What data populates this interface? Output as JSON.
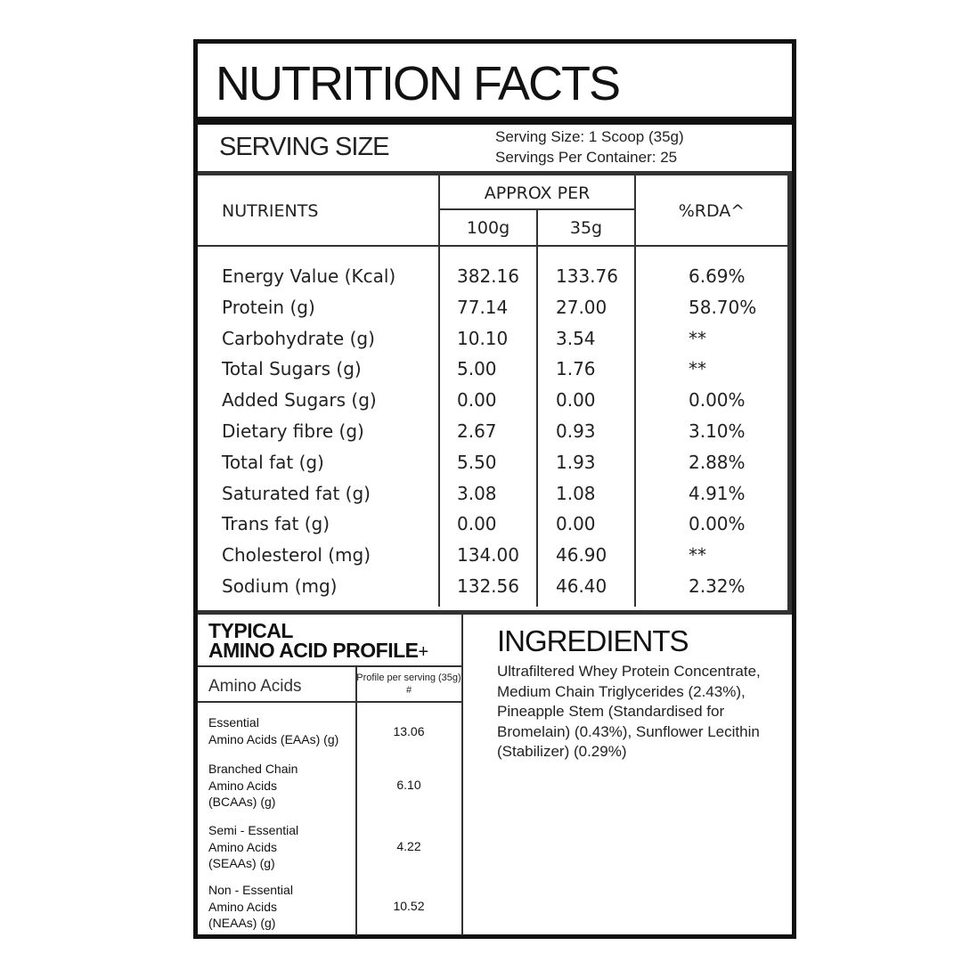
{
  "title": "NUTRITION FACTS",
  "serving": {
    "heading": "SERVING SIZE",
    "size": "Serving Size: 1 Scoop (35g)",
    "per_container": "Servings Per Container: 25"
  },
  "table": {
    "col_nutrients": "NUTRIENTS",
    "col_approx": "APPROX PER",
    "col_100g": "100g",
    "col_35g": "35g",
    "col_rda": "%RDA^",
    "rows": [
      {
        "name": "Energy Value (Kcal)",
        "per100": "382.16",
        "per35": "133.76",
        "rda": "6.69%"
      },
      {
        "name": "Protein (g)",
        "per100": "77.14",
        "per35": "27.00",
        "rda": "58.70%"
      },
      {
        "name": "Carbohydrate (g)",
        "per100": "10.10",
        "per35": "3.54",
        "rda": "**"
      },
      {
        "name": "Total Sugars (g)",
        "per100": "5.00",
        "per35": "1.76",
        "rda": "**"
      },
      {
        "name": "Added Sugars (g)",
        "per100": "0.00",
        "per35": "0.00",
        "rda": "0.00%"
      },
      {
        "name": "Dietary fibre (g)",
        "per100": "2.67",
        "per35": "0.93",
        "rda": "3.10%"
      },
      {
        "name": "Total fat (g)",
        "per100": "5.50",
        "per35": "1.93",
        "rda": "2.88%"
      },
      {
        "name": "Saturated fat (g)",
        "per100": "3.08",
        "per35": "1.08",
        "rda": "4.91%"
      },
      {
        "name": "Trans fat (g)",
        "per100": "0.00",
        "per35": "0.00",
        "rda": "0.00%"
      },
      {
        "name": "Cholesterol (mg)",
        "per100": "134.00",
        "per35": "46.90",
        "rda": "**"
      },
      {
        "name": "Sodium (mg)",
        "per100": "132.56",
        "per35": "46.40",
        "rda": "2.32%"
      }
    ]
  },
  "amino": {
    "title_line1": "TYPICAL",
    "title_line2": "AMINO ACID PROFILE",
    "title_plus": "+",
    "col_name": "Amino Acids",
    "col_value": "Profile per serving (35g) #",
    "rows": [
      {
        "name": "Essential\nAmino Acids (EAAs) (g)",
        "value": "13.06"
      },
      {
        "name": "Branched Chain\nAmino Acids\n(BCAAs) (g)",
        "value": "6.10"
      },
      {
        "name": "Semi - Essential\nAmino Acids\n(SEAAs) (g)",
        "value": "4.22"
      },
      {
        "name": "Non - Essential\nAmino Acids\n(NEAAs) (g)",
        "value": "10.52"
      }
    ]
  },
  "ingredients": {
    "heading": "INGREDIENTS",
    "text": "Ultrafiltered Whey Protein Concentrate, Medium Chain Triglycerides (2.43%), Pineapple Stem (Standardised for Bromelain) (0.43%), Sunflower Lecithin (Stabilizer) (0.29%)"
  }
}
